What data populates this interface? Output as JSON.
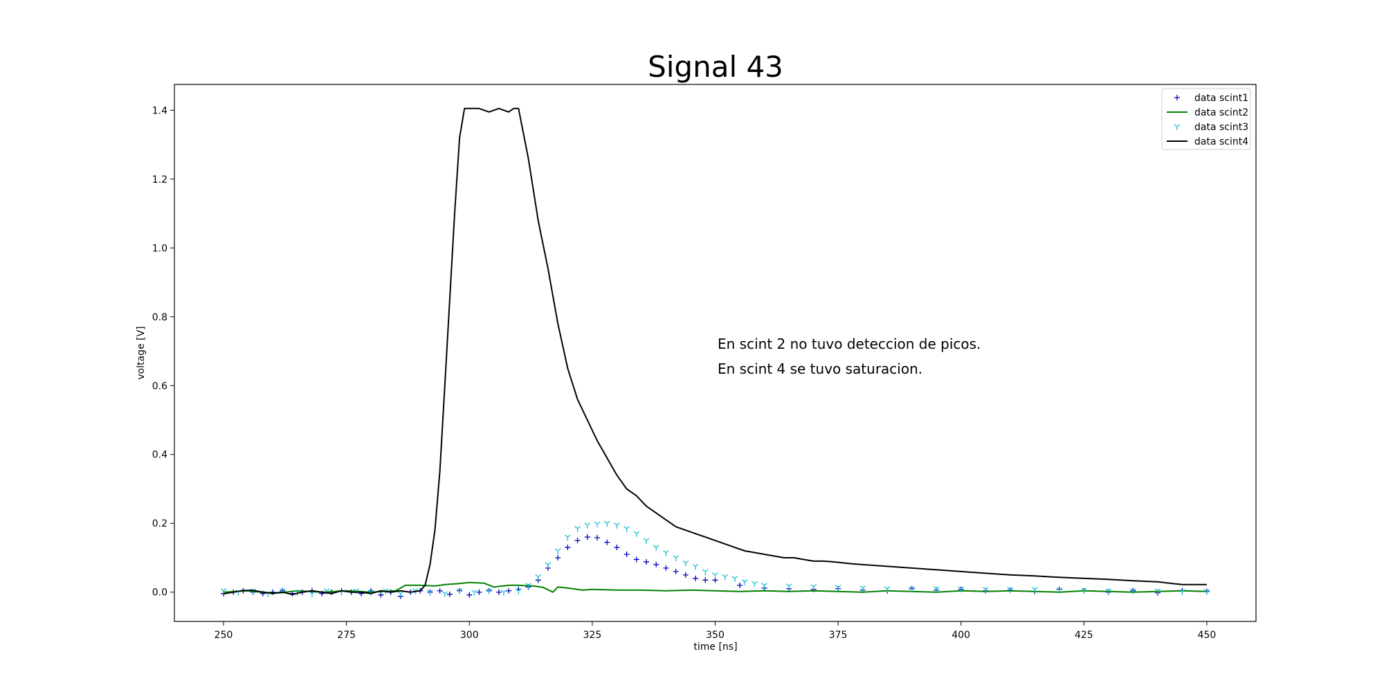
{
  "chart_data": {
    "type": "line",
    "title": "Signal 43",
    "xlabel": "time [ns]",
    "ylabel": "voltage [V]",
    "xlim": [
      240,
      460
    ],
    "ylim": [
      -0.085,
      1.475
    ],
    "xticks": [
      250,
      275,
      300,
      325,
      350,
      375,
      400,
      425,
      450
    ],
    "yticks": [
      0.0,
      0.2,
      0.4,
      0.6,
      0.8,
      1.0,
      1.2,
      1.4
    ],
    "xtick_labels": [
      "250",
      "275",
      "300",
      "325",
      "350",
      "375",
      "400",
      "425",
      "450"
    ],
    "ytick_labels": [
      "0.0",
      "0.2",
      "0.4",
      "0.6",
      "0.8",
      "1.0",
      "1.2",
      "1.4"
    ],
    "grid": false,
    "legend_position": "top-right",
    "annotations": [
      "En scint 2 no tuvo deteccion de picos.",
      "En scint 4 se tuvo saturacion."
    ],
    "series": [
      {
        "name": "data scint1",
        "style": "marker",
        "marker": "+",
        "color": "#0000bf",
        "x": [
          250,
          252,
          254,
          256,
          258,
          260,
          262,
          264,
          266,
          268,
          270,
          272,
          274,
          276,
          278,
          280,
          282,
          284,
          286,
          288,
          290,
          292,
          294,
          296,
          298,
          300,
          302,
          304,
          306,
          308,
          310,
          312,
          314,
          316,
          318,
          320,
          322,
          324,
          326,
          328,
          330,
          332,
          334,
          336,
          338,
          340,
          342,
          344,
          346,
          348,
          350,
          355,
          360,
          365,
          370,
          375,
          380,
          385,
          390,
          395,
          400,
          405,
          410,
          415,
          420,
          425,
          430,
          435,
          440,
          445,
          450
        ],
        "values": [
          -0.004,
          0.0,
          0.004,
          0.0,
          -0.004,
          0.0,
          0.004,
          -0.004,
          0.0,
          0.004,
          -0.004,
          0.0,
          0.004,
          0.0,
          -0.004,
          0.004,
          -0.008,
          0.0,
          -0.012,
          0.0,
          0.004,
          0.0,
          0.004,
          -0.006,
          0.004,
          -0.008,
          0.0,
          0.004,
          0.0,
          0.004,
          0.008,
          0.015,
          0.035,
          0.07,
          0.1,
          0.13,
          0.15,
          0.16,
          0.158,
          0.145,
          0.13,
          0.11,
          0.095,
          0.088,
          0.08,
          0.07,
          0.06,
          0.05,
          0.04,
          0.035,
          0.035,
          0.02,
          0.012,
          0.01,
          0.008,
          0.01,
          0.006,
          0.004,
          0.01,
          0.006,
          0.008,
          0.004,
          0.006,
          0.002,
          0.008,
          0.004,
          0.0,
          0.004,
          -0.002,
          0.004,
          0.002
        ]
      },
      {
        "name": "data scint2",
        "style": "line",
        "color": "#008000",
        "x": [
          250,
          255,
          260,
          265,
          270,
          275,
          280,
          285,
          287,
          290,
          293,
          295,
          298,
          300,
          303,
          305,
          308,
          310,
          313,
          315,
          317,
          318,
          320,
          323,
          325,
          330,
          335,
          340,
          345,
          350,
          355,
          360,
          365,
          370,
          375,
          380,
          385,
          390,
          395,
          400,
          405,
          410,
          415,
          420,
          425,
          430,
          435,
          440,
          445,
          450
        ],
        "values": [
          0.0,
          0.004,
          -0.004,
          0.004,
          0.0,
          0.004,
          0.0,
          0.004,
          0.02,
          0.02,
          0.018,
          0.022,
          0.025,
          0.028,
          0.026,
          0.015,
          0.02,
          0.02,
          0.018,
          0.014,
          0.0,
          0.015,
          0.012,
          0.006,
          0.008,
          0.006,
          0.006,
          0.004,
          0.006,
          0.004,
          0.002,
          0.004,
          0.002,
          0.004,
          0.002,
          0.0,
          0.004,
          0.002,
          0.0,
          0.004,
          0.002,
          0.004,
          0.002,
          0.0,
          0.004,
          0.002,
          0.0,
          0.002,
          0.004,
          0.002
        ]
      },
      {
        "name": "data scint3",
        "style": "marker",
        "marker": "tri_down",
        "color": "#17becf",
        "x": [
          250,
          253,
          256,
          259,
          262,
          265,
          268,
          271,
          274,
          277,
          280,
          283,
          286,
          289,
          292,
          295,
          298,
          301,
          304,
          307,
          310,
          312,
          314,
          316,
          318,
          320,
          322,
          324,
          326,
          328,
          330,
          332,
          334,
          336,
          338,
          340,
          342,
          344,
          346,
          348,
          350,
          352,
          354,
          356,
          358,
          360,
          365,
          370,
          375,
          380,
          385,
          390,
          395,
          400,
          405,
          410,
          415,
          420,
          425,
          430,
          435,
          440,
          445,
          450
        ],
        "values": [
          0.004,
          0.0,
          0.004,
          -0.004,
          0.004,
          0.0,
          -0.004,
          0.004,
          0.0,
          0.004,
          0.0,
          0.004,
          -0.004,
          0.004,
          0.0,
          -0.004,
          0.004,
          0.0,
          0.004,
          0.0,
          0.004,
          0.02,
          0.045,
          0.08,
          0.12,
          0.16,
          0.185,
          0.195,
          0.198,
          0.2,
          0.195,
          0.185,
          0.17,
          0.15,
          0.13,
          0.115,
          0.1,
          0.085,
          0.075,
          0.06,
          0.05,
          0.045,
          0.04,
          0.03,
          0.025,
          0.02,
          0.018,
          0.016,
          0.014,
          0.012,
          0.01,
          0.01,
          0.01,
          0.01,
          0.008,
          0.008,
          0.008,
          0.006,
          0.006,
          0.004,
          0.004,
          0.004,
          0.002,
          0.002
        ]
      },
      {
        "name": "data scint4",
        "style": "line",
        "color": "#000000",
        "x": [
          250,
          252,
          254,
          256,
          258,
          260,
          262,
          264,
          266,
          268,
          270,
          272,
          274,
          276,
          278,
          280,
          282,
          284,
          286,
          288,
          290,
          291,
          292,
          293,
          294,
          295,
          296,
          297,
          298,
          299,
          300,
          302,
          304,
          306,
          308,
          309,
          310,
          312,
          314,
          316,
          318,
          320,
          322,
          324,
          326,
          328,
          330,
          332,
          334,
          336,
          338,
          340,
          342,
          344,
          346,
          348,
          350,
          352,
          354,
          356,
          358,
          360,
          362,
          364,
          366,
          368,
          370,
          372,
          374,
          376,
          378,
          380,
          385,
          390,
          395,
          400,
          405,
          410,
          415,
          420,
          425,
          430,
          435,
          440,
          443,
          445,
          450
        ],
        "values": [
          -0.005,
          0.0,
          0.005,
          0.005,
          0.0,
          -0.003,
          0.0,
          -0.007,
          0.0,
          0.004,
          0.0,
          -0.004,
          0.004,
          0.0,
          0.0,
          -0.004,
          0.004,
          0.0,
          0.004,
          0.0,
          0.004,
          0.02,
          0.08,
          0.18,
          0.35,
          0.6,
          0.85,
          1.1,
          1.32,
          1.405,
          1.405,
          1.405,
          1.395,
          1.405,
          1.395,
          1.405,
          1.405,
          1.26,
          1.08,
          0.94,
          0.78,
          0.65,
          0.56,
          0.5,
          0.44,
          0.39,
          0.34,
          0.3,
          0.28,
          0.25,
          0.23,
          0.21,
          0.19,
          0.18,
          0.17,
          0.16,
          0.15,
          0.14,
          0.13,
          0.12,
          0.115,
          0.11,
          0.105,
          0.1,
          0.1,
          0.095,
          0.09,
          0.09,
          0.088,
          0.085,
          0.082,
          0.08,
          0.075,
          0.07,
          0.065,
          0.06,
          0.055,
          0.05,
          0.047,
          0.043,
          0.04,
          0.037,
          0.033,
          0.03,
          0.025,
          0.022,
          0.022
        ]
      }
    ]
  }
}
